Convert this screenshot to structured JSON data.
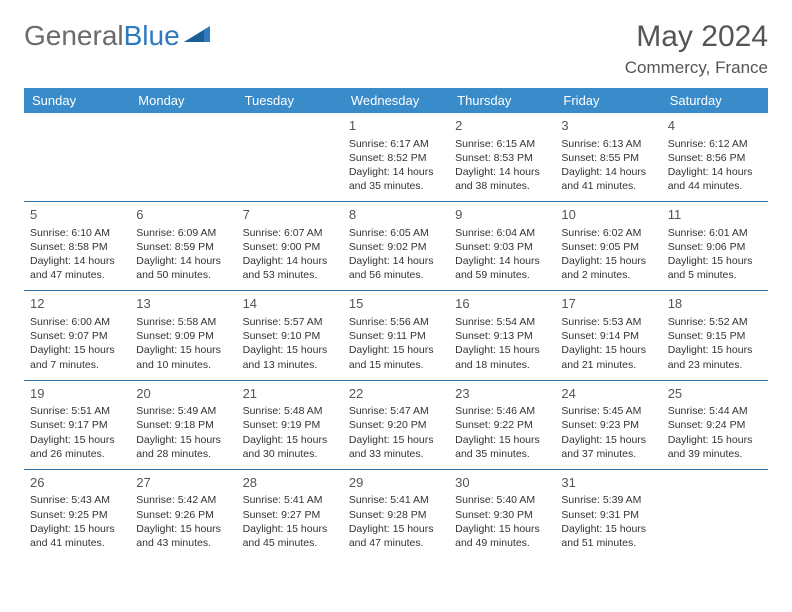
{
  "brand": {
    "part1": "General",
    "part2": "Blue"
  },
  "title": "May 2024",
  "location": "Commercy, France",
  "colors": {
    "header_bg": "#3a8bca",
    "row_border": "#2f6fa8",
    "brand_gray": "#6b6b6b",
    "brand_blue": "#2f7abf"
  },
  "weekdays": [
    "Sunday",
    "Monday",
    "Tuesday",
    "Wednesday",
    "Thursday",
    "Friday",
    "Saturday"
  ],
  "weeks": [
    [
      null,
      null,
      null,
      {
        "n": "1",
        "sr": "6:17 AM",
        "ss": "8:52 PM",
        "dl": "14 hours and 35 minutes."
      },
      {
        "n": "2",
        "sr": "6:15 AM",
        "ss": "8:53 PM",
        "dl": "14 hours and 38 minutes."
      },
      {
        "n": "3",
        "sr": "6:13 AM",
        "ss": "8:55 PM",
        "dl": "14 hours and 41 minutes."
      },
      {
        "n": "4",
        "sr": "6:12 AM",
        "ss": "8:56 PM",
        "dl": "14 hours and 44 minutes."
      }
    ],
    [
      {
        "n": "5",
        "sr": "6:10 AM",
        "ss": "8:58 PM",
        "dl": "14 hours and 47 minutes."
      },
      {
        "n": "6",
        "sr": "6:09 AM",
        "ss": "8:59 PM",
        "dl": "14 hours and 50 minutes."
      },
      {
        "n": "7",
        "sr": "6:07 AM",
        "ss": "9:00 PM",
        "dl": "14 hours and 53 minutes."
      },
      {
        "n": "8",
        "sr": "6:05 AM",
        "ss": "9:02 PM",
        "dl": "14 hours and 56 minutes."
      },
      {
        "n": "9",
        "sr": "6:04 AM",
        "ss": "9:03 PM",
        "dl": "14 hours and 59 minutes."
      },
      {
        "n": "10",
        "sr": "6:02 AM",
        "ss": "9:05 PM",
        "dl": "15 hours and 2 minutes."
      },
      {
        "n": "11",
        "sr": "6:01 AM",
        "ss": "9:06 PM",
        "dl": "15 hours and 5 minutes."
      }
    ],
    [
      {
        "n": "12",
        "sr": "6:00 AM",
        "ss": "9:07 PM",
        "dl": "15 hours and 7 minutes."
      },
      {
        "n": "13",
        "sr": "5:58 AM",
        "ss": "9:09 PM",
        "dl": "15 hours and 10 minutes."
      },
      {
        "n": "14",
        "sr": "5:57 AM",
        "ss": "9:10 PM",
        "dl": "15 hours and 13 minutes."
      },
      {
        "n": "15",
        "sr": "5:56 AM",
        "ss": "9:11 PM",
        "dl": "15 hours and 15 minutes."
      },
      {
        "n": "16",
        "sr": "5:54 AM",
        "ss": "9:13 PM",
        "dl": "15 hours and 18 minutes."
      },
      {
        "n": "17",
        "sr": "5:53 AM",
        "ss": "9:14 PM",
        "dl": "15 hours and 21 minutes."
      },
      {
        "n": "18",
        "sr": "5:52 AM",
        "ss": "9:15 PM",
        "dl": "15 hours and 23 minutes."
      }
    ],
    [
      {
        "n": "19",
        "sr": "5:51 AM",
        "ss": "9:17 PM",
        "dl": "15 hours and 26 minutes."
      },
      {
        "n": "20",
        "sr": "5:49 AM",
        "ss": "9:18 PM",
        "dl": "15 hours and 28 minutes."
      },
      {
        "n": "21",
        "sr": "5:48 AM",
        "ss": "9:19 PM",
        "dl": "15 hours and 30 minutes."
      },
      {
        "n": "22",
        "sr": "5:47 AM",
        "ss": "9:20 PM",
        "dl": "15 hours and 33 minutes."
      },
      {
        "n": "23",
        "sr": "5:46 AM",
        "ss": "9:22 PM",
        "dl": "15 hours and 35 minutes."
      },
      {
        "n": "24",
        "sr": "5:45 AM",
        "ss": "9:23 PM",
        "dl": "15 hours and 37 minutes."
      },
      {
        "n": "25",
        "sr": "5:44 AM",
        "ss": "9:24 PM",
        "dl": "15 hours and 39 minutes."
      }
    ],
    [
      {
        "n": "26",
        "sr": "5:43 AM",
        "ss": "9:25 PM",
        "dl": "15 hours and 41 minutes."
      },
      {
        "n": "27",
        "sr": "5:42 AM",
        "ss": "9:26 PM",
        "dl": "15 hours and 43 minutes."
      },
      {
        "n": "28",
        "sr": "5:41 AM",
        "ss": "9:27 PM",
        "dl": "15 hours and 45 minutes."
      },
      {
        "n": "29",
        "sr": "5:41 AM",
        "ss": "9:28 PM",
        "dl": "15 hours and 47 minutes."
      },
      {
        "n": "30",
        "sr": "5:40 AM",
        "ss": "9:30 PM",
        "dl": "15 hours and 49 minutes."
      },
      {
        "n": "31",
        "sr": "5:39 AM",
        "ss": "9:31 PM",
        "dl": "15 hours and 51 minutes."
      },
      null
    ]
  ],
  "labels": {
    "sunrise": "Sunrise:",
    "sunset": "Sunset:",
    "daylight": "Daylight:"
  }
}
